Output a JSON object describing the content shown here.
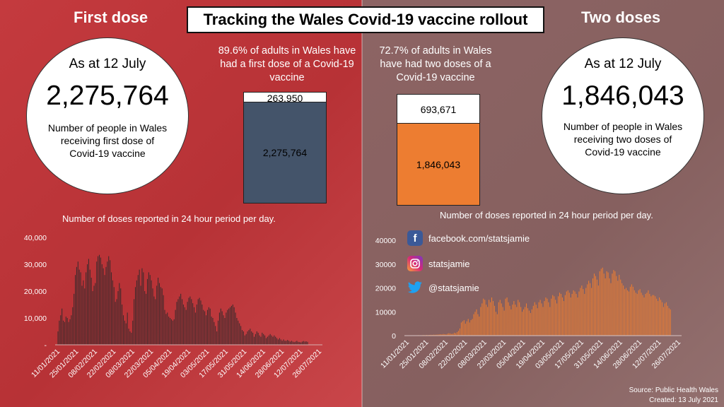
{
  "title": "Tracking the Wales Covid-19 vaccine rollout",
  "first": {
    "heading": "First dose",
    "as_at": "As at 12 July",
    "total": "2,275,764",
    "desc": "Number of people in Wales receiving first dose of Covid-19 vaccine",
    "pct_text": "89.6% of adults in Wales have had a first dose of a Covid-19 vaccine",
    "remaining": "263,950",
    "done": "2,275,764",
    "fraction": 0.896,
    "color": "#44546a",
    "subhead": "Number of doses reported in 24 hour period per day."
  },
  "second": {
    "heading": "Two doses",
    "as_at": "As at 12 July",
    "total": "1,846,043",
    "desc": "Number of people in Wales receiving two doses of Covid-19 vaccine",
    "pct_text": "72.7% of adults in Wales have had two doses of a Covid-19 vaccine",
    "remaining": "693,671",
    "done": "1,846,043",
    "fraction": 0.727,
    "color": "#ed7d31",
    "subhead": "Number of doses reported in 24 hour period per day."
  },
  "social": {
    "facebook": "facebook.com/statsjamie",
    "instagram": "statsjamie",
    "twitter": "@statsjamie"
  },
  "footer": {
    "source": "Source:  Public Health Wales",
    "created": "Created: 13 July 2021"
  },
  "colors": {
    "bar_first": "#3a2a2c",
    "bar_second": "#ed7d31",
    "left_bg": "#c43a3e",
    "right_bg": "#8d6464"
  },
  "chart_data": [
    {
      "type": "bar",
      "title": "Number of doses reported in 24 hour period per day.",
      "x_ticks": [
        "11/01/2021",
        "25/01/2021",
        "08/02/2021",
        "22/02/2021",
        "08/03/2021",
        "22/03/2021",
        "05/04/2021",
        "19/04/2021",
        "03/05/2021",
        "17/05/2021",
        "31/05/2021",
        "14/06/2021",
        "28/06/2021",
        "12/07/2021",
        "26/07/2021"
      ],
      "y_ticks": [
        "-",
        "10,000",
        "20,000",
        "30,000",
        "40,000"
      ],
      "ylim": [
        0,
        40000
      ],
      "start_date": "11/01/2021",
      "values": [
        5000,
        9000,
        11000,
        13500,
        9000,
        8500,
        10500,
        10000,
        8500,
        9500,
        11000,
        14000,
        19000,
        26000,
        29000,
        31000,
        28000,
        27000,
        22000,
        24000,
        21000,
        27000,
        30000,
        32000,
        28000,
        25000,
        20000,
        22000,
        23000,
        31000,
        33000,
        33500,
        32500,
        30000,
        28500,
        26000,
        29000,
        31000,
        33000,
        31500,
        27000,
        24000,
        21500,
        16000,
        17000,
        20000,
        23000,
        21000,
        15000,
        11000,
        9000,
        8000,
        12000,
        6000,
        5000,
        4500,
        9000,
        17000,
        21500,
        24000,
        26000,
        28000,
        22000,
        28500,
        27000,
        20000,
        19000,
        24500,
        27000,
        26000,
        24000,
        21000,
        18000,
        17000,
        22000,
        25000,
        23000,
        21500,
        21000,
        18500,
        13000,
        11500,
        12000,
        10500,
        10000,
        9500,
        9000,
        9500,
        13000,
        16000,
        17000,
        18000,
        19000,
        17000,
        15000,
        14000,
        13000,
        16000,
        17500,
        18000,
        17000,
        15500,
        14000,
        12000,
        15000,
        17000,
        17500,
        16500,
        15000,
        13000,
        12500,
        11000,
        13000,
        14000,
        13500,
        10500,
        10000,
        8500,
        7000,
        5000,
        9000,
        12000,
        13500,
        12500,
        11000,
        10000,
        12000,
        13000,
        13500,
        14000,
        14500,
        15000,
        14000,
        12000,
        10000,
        9000,
        8000,
        7000,
        5500,
        5000,
        3500,
        4000,
        5000,
        5500,
        6000,
        5000,
        4500,
        3000,
        4000,
        5000,
        4500,
        3500,
        3000,
        4500,
        4000,
        3500,
        2500,
        3000,
        3500,
        4000,
        3500,
        3000,
        3500,
        3000,
        2500,
        2000,
        2500,
        2000,
        1500,
        2000,
        1500,
        1500,
        1800,
        1500,
        1200,
        1500,
        1200,
        1000,
        1200,
        1500,
        1100,
        1000,
        900,
        1200,
        1400,
        1200,
        1300,
        1100
      ],
      "bar_color": "#3a2a2c"
    },
    {
      "type": "bar",
      "title": "Number of doses reported in 24 hour period per day.",
      "x_ticks": [
        "11/01/2021",
        "25/01/2021",
        "08/02/2021",
        "22/02/2021",
        "08/03/2021",
        "22/03/2021",
        "05/04/2021",
        "19/04/2021",
        "03/05/2021",
        "17/05/2021",
        "31/05/2021",
        "14/06/2021",
        "28/06/2021",
        "12/07/2021",
        "26/07/2021"
      ],
      "y_ticks": [
        "0",
        "10000",
        "20000",
        "30000",
        "40000"
      ],
      "ylim": [
        0,
        40000
      ],
      "start_date": "11/01/2021",
      "values": [
        100,
        100,
        120,
        100,
        150,
        120,
        100,
        150,
        200,
        150,
        180,
        200,
        250,
        200,
        300,
        250,
        300,
        350,
        300,
        400,
        350,
        400,
        450,
        500,
        600,
        500,
        700,
        600,
        500,
        800,
        1000,
        900,
        700,
        800,
        1200,
        1000,
        1500,
        2000,
        3000,
        5500,
        6000,
        6500,
        5000,
        6000,
        7000,
        5500,
        6500,
        7000,
        9000,
        10000,
        11000,
        9000,
        8000,
        12000,
        13500,
        15500,
        15000,
        13000,
        12000,
        15000,
        14000,
        16000,
        14500,
        12500,
        10000,
        9000,
        14000,
        15000,
        13500,
        12000,
        10500,
        15500,
        16000,
        14000,
        12500,
        11000,
        13000,
        14500,
        13000,
        12000,
        15000,
        14000,
        12000,
        10000,
        11000,
        12000,
        13500,
        11500,
        10500,
        9500,
        11000,
        12500,
        14000,
        13000,
        11500,
        14000,
        15000,
        13500,
        12000,
        14500,
        16000,
        15500,
        14000,
        12000,
        15500,
        17000,
        16500,
        15000,
        13500,
        16500,
        18000,
        17500,
        16000,
        14500,
        17000,
        18500,
        19000,
        18000,
        16000,
        17500,
        19000,
        18500,
        17500,
        16000,
        18500,
        20000,
        21000,
        19500,
        17500,
        20000,
        21500,
        23000,
        22000,
        20000,
        24000,
        26000,
        25000,
        23500,
        21000,
        27000,
        28000,
        28500,
        26000,
        24000,
        27000,
        26500,
        24000,
        22000,
        26000,
        27500,
        27000,
        25000,
        23000,
        25500,
        23500,
        22000,
        21000,
        19500,
        20000,
        19000,
        18500,
        20500,
        21500,
        20500,
        19000,
        18000,
        17500,
        19000,
        19500,
        18000,
        17000,
        16000,
        17500,
        18000,
        19000,
        17500,
        16500,
        17000,
        17000,
        16500,
        15500,
        14500,
        16000,
        15000,
        14000,
        12000,
        13500,
        14000,
        12500,
        11500,
        11000
      ]
    }
  ]
}
